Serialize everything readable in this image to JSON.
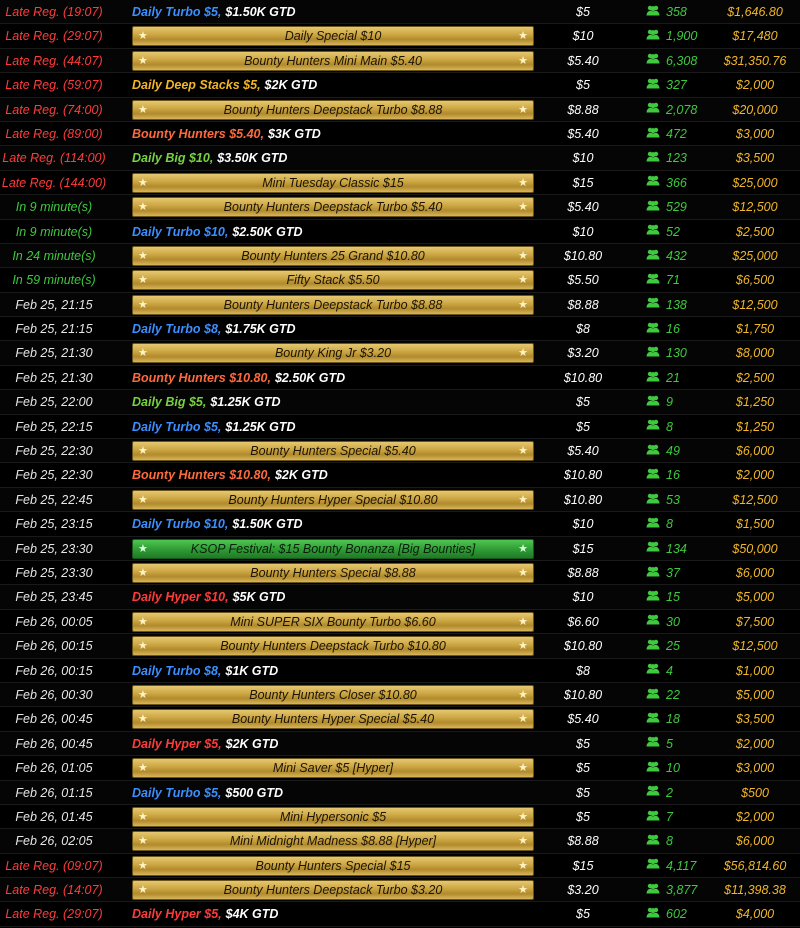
{
  "player_icon": "players-icon",
  "colors": {
    "late_reg": "#ff3b3b",
    "soon": "#3ec93e",
    "date": "#e6e6e6",
    "players": "#3ec93e",
    "prize": "#f2b628",
    "gold_banner": "#caa441",
    "green_banner": "#2e9a35"
  },
  "tournaments": [
    {
      "time": "Late Reg. (19:07)",
      "time_type": "late",
      "name_style": "plain",
      "name_color": "turbo",
      "name": "Daily Turbo $5,",
      "gtd": "$1.50K GTD",
      "buyin": "$5",
      "players": "358",
      "prize": "$1,646.80"
    },
    {
      "time": "Late Reg. (29:07)",
      "time_type": "late",
      "name_style": "banner",
      "name": "Daily Special $10",
      "buyin": "$10",
      "players": "1,900",
      "prize": "$17,480"
    },
    {
      "time": "Late Reg. (44:07)",
      "time_type": "late",
      "name_style": "banner",
      "name": "Bounty Hunters Mini Main $5.40",
      "buyin": "$5.40",
      "players": "6,308",
      "prize": "$31,350.76"
    },
    {
      "time": "Late Reg. (59:07)",
      "time_type": "late",
      "name_style": "plain",
      "name_color": "deep",
      "name": "Daily Deep Stacks $5,",
      "gtd": "$2K GTD",
      "buyin": "$5",
      "players": "327",
      "prize": "$2,000"
    },
    {
      "time": "Late Reg. (74:00)",
      "time_type": "late",
      "name_style": "banner",
      "name": "Bounty Hunters Deepstack Turbo $8.88",
      "buyin": "$8.88",
      "players": "2,078",
      "prize": "$20,000"
    },
    {
      "time": "Late Reg. (89:00)",
      "time_type": "late",
      "name_style": "plain",
      "name_color": "bounty",
      "name": "Bounty Hunters $5.40,",
      "gtd": "$3K GTD",
      "buyin": "$5.40",
      "players": "472",
      "prize": "$3,000"
    },
    {
      "time": "Late Reg. (114:00)",
      "time_type": "late",
      "name_style": "plain",
      "name_color": "big",
      "name": "Daily Big $10,",
      "gtd": "$3.50K GTD",
      "buyin": "$10",
      "players": "123",
      "prize": "$3,500"
    },
    {
      "time": "Late Reg. (144:00)",
      "time_type": "late",
      "name_style": "banner",
      "name": "Mini Tuesday Classic $15",
      "buyin": "$15",
      "players": "366",
      "prize": "$25,000"
    },
    {
      "time": "In 9 minute(s)",
      "time_type": "soon",
      "name_style": "banner",
      "name": "Bounty Hunters Deepstack Turbo $5.40",
      "buyin": "$5.40",
      "players": "529",
      "prize": "$12,500"
    },
    {
      "time": "In 9 minute(s)",
      "time_type": "soon",
      "name_style": "plain",
      "name_color": "turbo",
      "name": "Daily Turbo $10,",
      "gtd": "$2.50K GTD",
      "buyin": "$10",
      "players": "52",
      "prize": "$2,500"
    },
    {
      "time": "In 24 minute(s)",
      "time_type": "soon",
      "name_style": "banner",
      "name": "Bounty Hunters 25 Grand $10.80",
      "buyin": "$10.80",
      "players": "432",
      "prize": "$25,000"
    },
    {
      "time": "In 59 minute(s)",
      "time_type": "soon",
      "name_style": "banner",
      "name": "Fifty Stack $5.50",
      "buyin": "$5.50",
      "players": "71",
      "prize": "$6,500"
    },
    {
      "time": "Feb 25, 21:15",
      "time_type": "date",
      "name_style": "banner",
      "name": "Bounty Hunters Deepstack Turbo $8.88",
      "buyin": "$8.88",
      "players": "138",
      "prize": "$12,500"
    },
    {
      "time": "Feb 25, 21:15",
      "time_type": "date",
      "name_style": "plain",
      "name_color": "turbo",
      "name": "Daily Turbo $8,",
      "gtd": "$1.75K GTD",
      "buyin": "$8",
      "players": "16",
      "prize": "$1,750"
    },
    {
      "time": "Feb 25, 21:30",
      "time_type": "date",
      "name_style": "banner",
      "name": "Bounty King Jr $3.20",
      "buyin": "$3.20",
      "players": "130",
      "prize": "$8,000"
    },
    {
      "time": "Feb 25, 21:30",
      "time_type": "date",
      "name_style": "plain",
      "name_color": "bounty",
      "name": "Bounty Hunters $10.80,",
      "gtd": "$2.50K GTD",
      "buyin": "$10.80",
      "players": "21",
      "prize": "$2,500"
    },
    {
      "time": "Feb 25, 22:00",
      "time_type": "date",
      "name_style": "plain",
      "name_color": "big",
      "name": "Daily Big $5,",
      "gtd": "$1.25K GTD",
      "buyin": "$5",
      "players": "9",
      "prize": "$1,250"
    },
    {
      "time": "Feb 25, 22:15",
      "time_type": "date",
      "name_style": "plain",
      "name_color": "turbo",
      "name": "Daily Turbo $5,",
      "gtd": "$1.25K GTD",
      "buyin": "$5",
      "players": "8",
      "prize": "$1,250"
    },
    {
      "time": "Feb 25, 22:30",
      "time_type": "date",
      "name_style": "banner",
      "name": "Bounty Hunters Special $5.40",
      "buyin": "$5.40",
      "players": "49",
      "prize": "$6,000"
    },
    {
      "time": "Feb 25, 22:30",
      "time_type": "date",
      "name_style": "plain",
      "name_color": "bounty",
      "name": "Bounty Hunters $10.80,",
      "gtd": "$2K GTD",
      "buyin": "$10.80",
      "players": "16",
      "prize": "$2,000"
    },
    {
      "time": "Feb 25, 22:45",
      "time_type": "date",
      "name_style": "banner",
      "name": "Bounty Hunters Hyper Special $10.80",
      "buyin": "$10.80",
      "players": "53",
      "prize": "$12,500"
    },
    {
      "time": "Feb 25, 23:15",
      "time_type": "date",
      "name_style": "plain",
      "name_color": "turbo",
      "name": "Daily Turbo $10,",
      "gtd": "$1.50K GTD",
      "buyin": "$10",
      "players": "8",
      "prize": "$1,500"
    },
    {
      "time": "Feb 25, 23:30",
      "time_type": "date",
      "name_style": "banner-green",
      "name": "KSOP Festival: $15 Bounty Bonanza [Big Bounties]",
      "buyin": "$15",
      "players": "134",
      "prize": "$50,000"
    },
    {
      "time": "Feb 25, 23:30",
      "time_type": "date",
      "name_style": "banner",
      "name": "Bounty Hunters Special $8.88",
      "buyin": "$8.88",
      "players": "37",
      "prize": "$6,000"
    },
    {
      "time": "Feb 25, 23:45",
      "time_type": "date",
      "name_style": "plain",
      "name_color": "hyper",
      "name": "Daily Hyper $10,",
      "gtd": "$5K GTD",
      "buyin": "$10",
      "players": "15",
      "prize": "$5,000"
    },
    {
      "time": "Feb 26, 00:05",
      "time_type": "date",
      "name_style": "banner",
      "name": "Mini SUPER SIX Bounty Turbo $6.60",
      "buyin": "$6.60",
      "players": "30",
      "prize": "$7,500"
    },
    {
      "time": "Feb 26, 00:15",
      "time_type": "date",
      "name_style": "banner",
      "name": "Bounty Hunters Deepstack Turbo $10.80",
      "buyin": "$10.80",
      "players": "25",
      "prize": "$12,500"
    },
    {
      "time": "Feb 26, 00:15",
      "time_type": "date",
      "name_style": "plain",
      "name_color": "turbo",
      "name": "Daily Turbo $8,",
      "gtd": "$1K GTD",
      "buyin": "$8",
      "players": "4",
      "prize": "$1,000"
    },
    {
      "time": "Feb 26, 00:30",
      "time_type": "date",
      "name_style": "banner",
      "name": "Bounty Hunters Closer $10.80",
      "buyin": "$10.80",
      "players": "22",
      "prize": "$5,000"
    },
    {
      "time": "Feb 26, 00:45",
      "time_type": "date",
      "name_style": "banner",
      "name": "Bounty Hunters Hyper Special $5.40",
      "buyin": "$5.40",
      "players": "18",
      "prize": "$3,500"
    },
    {
      "time": "Feb 26, 00:45",
      "time_type": "date",
      "name_style": "plain",
      "name_color": "hyper",
      "name": "Daily Hyper $5,",
      "gtd": "$2K GTD",
      "buyin": "$5",
      "players": "5",
      "prize": "$2,000"
    },
    {
      "time": "Feb 26, 01:05",
      "time_type": "date",
      "name_style": "banner",
      "name": "Mini Saver $5 [Hyper]",
      "buyin": "$5",
      "players": "10",
      "prize": "$3,000"
    },
    {
      "time": "Feb 26, 01:15",
      "time_type": "date",
      "name_style": "plain",
      "name_color": "turbo",
      "name": "Daily Turbo $5,",
      "gtd": "$500 GTD",
      "buyin": "$5",
      "players": "2",
      "prize": "$500"
    },
    {
      "time": "Feb 26, 01:45",
      "time_type": "date",
      "name_style": "banner",
      "name": "Mini Hypersonic $5",
      "buyin": "$5",
      "players": "7",
      "prize": "$2,000"
    },
    {
      "time": "Feb 26, 02:05",
      "time_type": "date",
      "name_style": "banner",
      "name": "Mini Midnight Madness $8.88 [Hyper]",
      "buyin": "$8.88",
      "players": "8",
      "prize": "$6,000"
    },
    {
      "time": "Late Reg. (09:07)",
      "time_type": "late",
      "name_style": "banner",
      "name": "Bounty Hunters Special $15",
      "buyin": "$15",
      "players": "4,117",
      "prize": "$56,814.60"
    },
    {
      "time": "Late Reg. (14:07)",
      "time_type": "late",
      "name_style": "banner",
      "name": "Bounty Hunters Deepstack Turbo $3.20",
      "buyin": "$3.20",
      "players": "3,877",
      "prize": "$11,398.38"
    },
    {
      "time": "Late Reg. (29:07)",
      "time_type": "late",
      "name_style": "plain",
      "name_color": "hyper",
      "name": "Daily Hyper $5,",
      "gtd": "$4K GTD",
      "buyin": "$5",
      "players": "602",
      "prize": "$4,000"
    }
  ]
}
